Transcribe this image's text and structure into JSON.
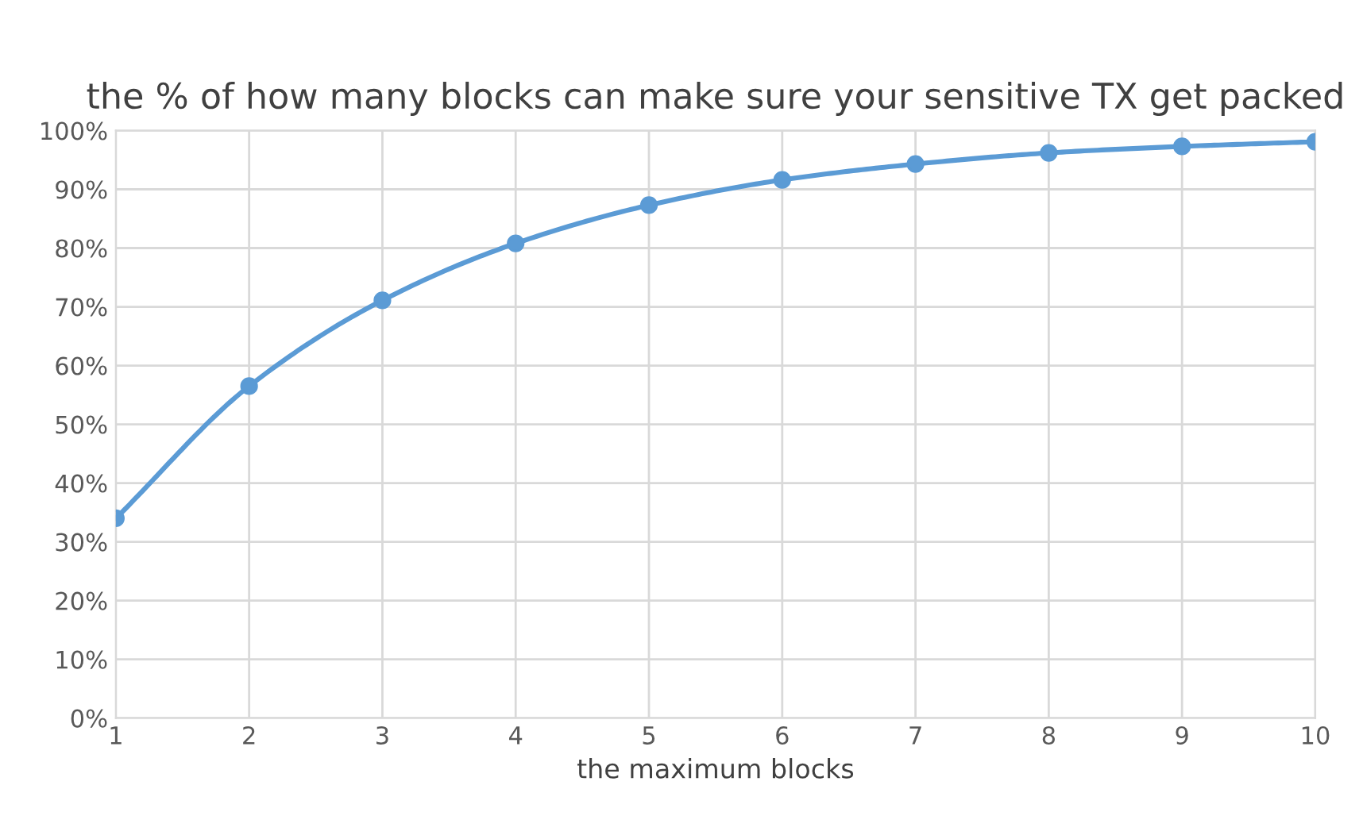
{
  "chart_data": {
    "type": "line",
    "title": "the % of how many blocks can make sure your sensitive TX get packed",
    "xlabel": "the maximum blocks",
    "x": [
      1,
      2,
      3,
      4,
      5,
      6,
      7,
      8,
      9,
      10
    ],
    "series": [
      {
        "color": "#5b9bd5",
        "values": [
          34.0,
          56.5,
          71.1,
          80.8,
          87.3,
          91.6,
          94.3,
          96.2,
          97.3,
          98.1
        ]
      }
    ],
    "xlim": [
      1,
      10
    ],
    "xticks": [
      1,
      2,
      3,
      4,
      5,
      6,
      7,
      8,
      9,
      10
    ],
    "ylim": [
      0,
      100
    ],
    "yticks": [
      {
        "value": 0,
        "label": "0%"
      },
      {
        "value": 10,
        "label": "10%"
      },
      {
        "value": 20,
        "label": "20%"
      },
      {
        "value": 30,
        "label": "30%"
      },
      {
        "value": 40,
        "label": "40%"
      },
      {
        "value": 50,
        "label": "50%"
      },
      {
        "value": 60,
        "label": "60%"
      },
      {
        "value": 70,
        "label": "70%"
      },
      {
        "value": 80,
        "label": "80%"
      },
      {
        "value": 90,
        "label": "90%"
      },
      {
        "value": 100,
        "label": "100%"
      }
    ],
    "grid": true,
    "marker": "circle",
    "line_style": "solid"
  }
}
